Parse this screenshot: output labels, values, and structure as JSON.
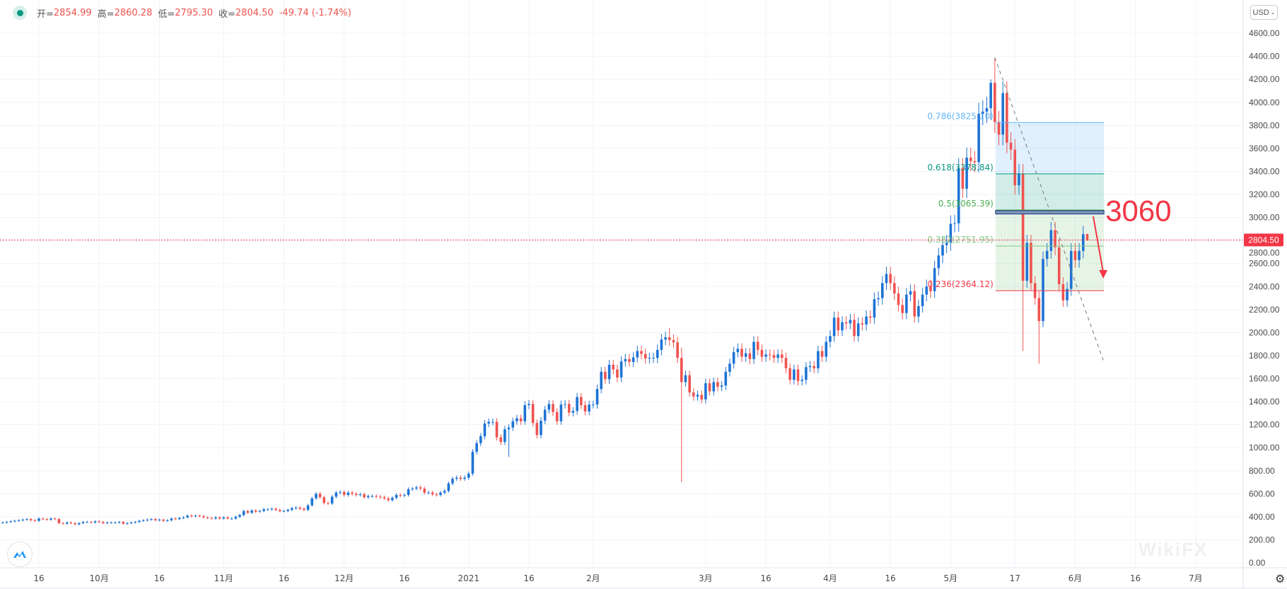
{
  "legend": {
    "open_label": "开=",
    "open": "2854.99",
    "high_label": "高=",
    "high": "2860.28",
    "low_label": "低=",
    "low": "2795.30",
    "close_label": "收=",
    "close": "2804.50",
    "change": "-49.74 (-1.74%)"
  },
  "currency_button": "USD",
  "watermark": "WikiFX",
  "colors": {
    "up": "#1e73d4",
    "down": "#ef5350",
    "grid": "#f0f3fa",
    "price_line": "#f23645"
  },
  "chart_data": {
    "type": "candlestick",
    "title": "",
    "y_axis": {
      "min": 0,
      "max": 4600,
      "step": 200,
      "labels": [
        "0.00",
        "200.00",
        "400.00",
        "600.00",
        "800.00",
        "1000.00",
        "1200.00",
        "1400.00",
        "1600.00",
        "1800.00",
        "2000.00",
        "2200.00",
        "2400.00",
        "2600.00",
        "2800.00",
        "3000.00",
        "3200.00",
        "3400.00",
        "3600.00",
        "3800.00",
        "4000.00",
        "4200.00",
        "4400.00",
        "4600.00"
      ]
    },
    "x_axis": {
      "ticks": [
        {
          "i": 9,
          "label": "16"
        },
        {
          "i": 24,
          "label": "10月"
        },
        {
          "i": 39,
          "label": "16"
        },
        {
          "i": 55,
          "label": "11月"
        },
        {
          "i": 70,
          "label": "16"
        },
        {
          "i": 85,
          "label": "12月"
        },
        {
          "i": 100,
          "label": "16"
        },
        {
          "i": 116,
          "label": "2021"
        },
        {
          "i": 131,
          "label": "16"
        },
        {
          "i": 147,
          "label": "2月"
        },
        {
          "i": 175,
          "label": "3月"
        },
        {
          "i": 190,
          "label": "16"
        },
        {
          "i": 206,
          "label": "4月"
        },
        {
          "i": 221,
          "label": "16"
        },
        {
          "i": 236,
          "label": "5月"
        },
        {
          "i": 252,
          "label": "17"
        },
        {
          "i": 267,
          "label": "6月"
        },
        {
          "i": 282,
          "label": "16"
        },
        {
          "i": 297,
          "label": "7月"
        }
      ]
    },
    "wick_pct": 0.025,
    "closes": [
      350,
      355,
      360,
      365,
      370,
      375,
      380,
      370,
      365,
      385,
      380,
      375,
      385,
      380,
      345,
      340,
      350,
      345,
      335,
      345,
      355,
      355,
      350,
      360,
      355,
      345,
      350,
      350,
      350,
      355,
      340,
      345,
      350,
      355,
      365,
      370,
      375,
      380,
      370,
      375,
      365,
      370,
      385,
      380,
      390,
      395,
      410,
      405,
      410,
      405,
      395,
      390,
      385,
      395,
      385,
      395,
      385,
      385,
      400,
      415,
      450,
      435,
      455,
      445,
      450,
      465,
      465,
      470,
      460,
      450,
      450,
      460,
      475,
      480,
      470,
      460,
      500,
      560,
      600,
      570,
      520,
      515,
      575,
      610,
      615,
      590,
      610,
      600,
      590,
      595,
      570,
      580,
      580,
      575,
      570,
      560,
      545,
      565,
      590,
      585,
      590,
      640,
      645,
      655,
      645,
      610,
      610,
      595,
      590,
      610,
      625,
      690,
      730,
      740,
      730,
      740,
      775,
      965,
      1040,
      1100,
      1210,
      1225,
      1225,
      1090,
      1050,
      1160,
      1175,
      1230,
      1255,
      1230,
      1370,
      1380,
      1215,
      1110,
      1235,
      1330,
      1380,
      1310,
      1230,
      1375,
      1380,
      1305,
      1320,
      1440,
      1370,
      1315,
      1375,
      1375,
      1510,
      1660,
      1595,
      1720,
      1680,
      1610,
      1750,
      1770,
      1745,
      1785,
      1840,
      1815,
      1775,
      1780,
      1780,
      1850,
      1940,
      1960,
      1935,
      1915,
      1780,
      1570,
      1630,
      1480,
      1445,
      1460,
      1420,
      1560,
      1490,
      1570,
      1530,
      1540,
      1660,
      1730,
      1830,
      1860,
      1790,
      1820,
      1770,
      1920,
      1850,
      1790,
      1810,
      1805,
      1780,
      1810,
      1780,
      1690,
      1590,
      1680,
      1580,
      1590,
      1700,
      1710,
      1690,
      1840,
      1790,
      1920,
      1970,
      2130,
      2020,
      2090,
      2080,
      2110,
      1970,
      2080,
      2070,
      2140,
      2130,
      2290,
      2300,
      2430,
      2510,
      2430,
      2340,
      2240,
      2170,
      2330,
      2360,
      2140,
      2230,
      2330,
      2400,
      2360,
      2560,
      2670,
      2760,
      2780,
      2945,
      2950,
      3430,
      3250,
      3520,
      3490,
      3480,
      3900,
      3920,
      3950,
      4170,
      3830,
      3720,
      4080,
      3650,
      3590,
      3280,
      3380,
      2450,
      2780,
      2430,
      2300,
      2100,
      2640,
      2710,
      2890,
      2740,
      2420,
      2280,
      2380,
      2710,
      2630,
      2710,
      2855,
      2804.5
    ],
    "overrides": [
      {
        "i": 126,
        "l": 920
      },
      {
        "i": 169,
        "h": 1870,
        "l": 700
      },
      {
        "i": 166,
        "h": 2040
      },
      {
        "i": 247,
        "h": 4380
      },
      {
        "i": 246,
        "h": 4200
      },
      {
        "i": 254,
        "o": 3380,
        "l": 1840
      },
      {
        "i": 258,
        "l": 1730
      },
      {
        "i": 270,
        "o": 2854.99,
        "h": 2860.28,
        "l": 2795.3,
        "c": 2804.5
      }
    ],
    "last_price": {
      "value": 2804.5,
      "label": "2804.50"
    },
    "fibonacci": {
      "start_i": 247,
      "end_i": 274,
      "levels": [
        {
          "ratio": "0.786",
          "price": 3825.1,
          "label": "0.786(3825.10)",
          "color": "#64b5f6",
          "fill": "rgba(33,150,243,0.14)"
        },
        {
          "ratio": "0.618",
          "price": 3378.84,
          "label": "0.618(3378.84)",
          "color": "#089981",
          "fill": "rgba(8,153,129,0.18)"
        },
        {
          "ratio": "0.5",
          "price": 3065.39,
          "label": "0.5(3065.39)",
          "color": "#4caf50",
          "fill": "rgba(76,175,80,0.14)"
        },
        {
          "ratio": "0.382",
          "price": 2751.95,
          "label": "0.382(2751.95)",
          "color": "#81c784",
          "fill": "rgba(76,175,80,0.14)"
        },
        {
          "ratio": "0.236",
          "price": 2364.12,
          "label": "0.236(2364.12)",
          "color": "#f23645",
          "fill": null
        }
      ]
    },
    "annotations": {
      "resistance_zone": {
        "low": 3030,
        "high": 3060
      },
      "resistance_text": "3060",
      "trendline": {
        "from": {
          "i": 247,
          "price": 4390
        },
        "to": {
          "i": 274,
          "price": 1760
        }
      },
      "arrow": {
        "from": {
          "i": 271.5,
          "price": 3010
        },
        "to": {
          "i": 274,
          "price": 2470
        }
      }
    }
  }
}
